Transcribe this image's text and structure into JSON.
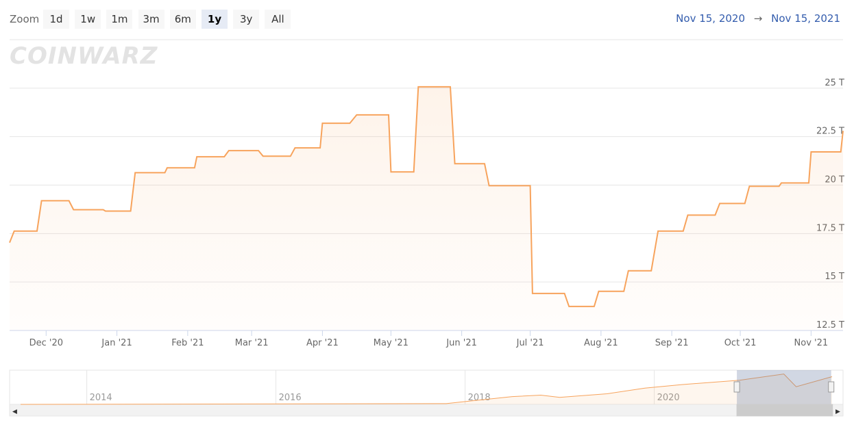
{
  "toolbar": {
    "zoom_label": "Zoom",
    "buttons": [
      "1d",
      "1w",
      "1m",
      "3m",
      "6m",
      "1y",
      "3y",
      "All"
    ],
    "selected": 5,
    "range_from": "Nov 15, 2020",
    "range_arrow": "→",
    "range_to": "Nov 15, 2021"
  },
  "watermark": "COINWARZ",
  "chart_data": {
    "type": "area",
    "color": "#f7a35c",
    "grid": true,
    "x": [
      "2020-11-15",
      "2020-11-17",
      "2020-11-27",
      "2020-11-29",
      "2020-12-11",
      "2020-12-13",
      "2020-12-26",
      "2020-12-27",
      "2021-01-07",
      "2021-01-09",
      "2021-01-22",
      "2021-01-23",
      "2021-02-04",
      "2021-02-05",
      "2021-02-17",
      "2021-02-19",
      "2021-03-04",
      "2021-03-06",
      "2021-03-18",
      "2021-03-20",
      "2021-03-31",
      "2021-04-01",
      "2021-04-13",
      "2021-04-16",
      "2021-04-30",
      "2021-05-01",
      "2021-05-11",
      "2021-05-13",
      "2021-05-27",
      "2021-05-29",
      "2021-06-11",
      "2021-06-13",
      "2021-07-01",
      "2021-07-02",
      "2021-07-16",
      "2021-07-18",
      "2021-07-29",
      "2021-07-31",
      "2021-08-11",
      "2021-08-13",
      "2021-08-23",
      "2021-08-26",
      "2021-09-06",
      "2021-09-08",
      "2021-09-20",
      "2021-09-22",
      "2021-10-03",
      "2021-10-05",
      "2021-10-18",
      "2021-10-19",
      "2021-10-31",
      "2021-11-01",
      "2021-11-14",
      "2021-11-15"
    ],
    "values": [
      17.03,
      17.63,
      17.63,
      19.19,
      19.19,
      18.73,
      18.73,
      18.66,
      18.66,
      20.64,
      20.64,
      20.89,
      20.89,
      21.46,
      21.46,
      21.78,
      21.78,
      21.49,
      21.49,
      21.92,
      21.92,
      23.19,
      23.19,
      23.62,
      23.62,
      20.68,
      20.68,
      25.07,
      25.07,
      21.1,
      21.1,
      19.97,
      19.97,
      14.41,
      14.41,
      13.74,
      13.74,
      14.52,
      14.52,
      15.58,
      15.58,
      17.63,
      17.63,
      18.45,
      18.45,
      19.05,
      19.05,
      19.94,
      19.94,
      20.11,
      20.11,
      21.71,
      21.71,
      22.8
    ],
    "xlim": [
      "2020-11-15",
      "2021-11-15"
    ],
    "xticks": [
      {
        "value": "2020-12-01",
        "label": "Dec '20"
      },
      {
        "value": "2021-01-01",
        "label": "Jan '21"
      },
      {
        "value": "2021-02-01",
        "label": "Feb '21"
      },
      {
        "value": "2021-03-01",
        "label": "Mar '21"
      },
      {
        "value": "2021-04-01",
        "label": "Apr '21"
      },
      {
        "value": "2021-05-01",
        "label": "May '21"
      },
      {
        "value": "2021-06-01",
        "label": "Jun '21"
      },
      {
        "value": "2021-07-01",
        "label": "Jul '21"
      },
      {
        "value": "2021-08-01",
        "label": "Aug '21"
      },
      {
        "value": "2021-09-01",
        "label": "Sep '21"
      },
      {
        "value": "2021-10-01",
        "label": "Oct '21"
      },
      {
        "value": "2021-11-01",
        "label": "Nov '21"
      }
    ],
    "ylim": [
      12.5,
      27.5
    ],
    "yticks": [
      {
        "value": 12.5,
        "label": "12.5 T"
      },
      {
        "value": 15,
        "label": "15 T"
      },
      {
        "value": 17.5,
        "label": "17.5 T"
      },
      {
        "value": 20,
        "label": "20 T"
      },
      {
        "value": 22.5,
        "label": "22.5 T"
      },
      {
        "value": 25,
        "label": "25 T"
      }
    ],
    "navigator": {
      "x": [
        2013.3,
        2017.8,
        2018.0,
        2018.5,
        2018.8,
        2019.0,
        2019.5,
        2019.9,
        2020.3,
        2020.9,
        2021.37,
        2021.5,
        2021.88
      ],
      "values": [
        0,
        0.6,
        2.3,
        6.4,
        7.6,
        5.8,
        8.7,
        13.4,
        16.3,
        19.8,
        25,
        14.5,
        22.8
      ],
      "xlim": [
        2013.3,
        2021.88
      ],
      "ylim": [
        0,
        27
      ],
      "xticks": [
        2014,
        2016,
        2018,
        2020
      ]
    }
  }
}
